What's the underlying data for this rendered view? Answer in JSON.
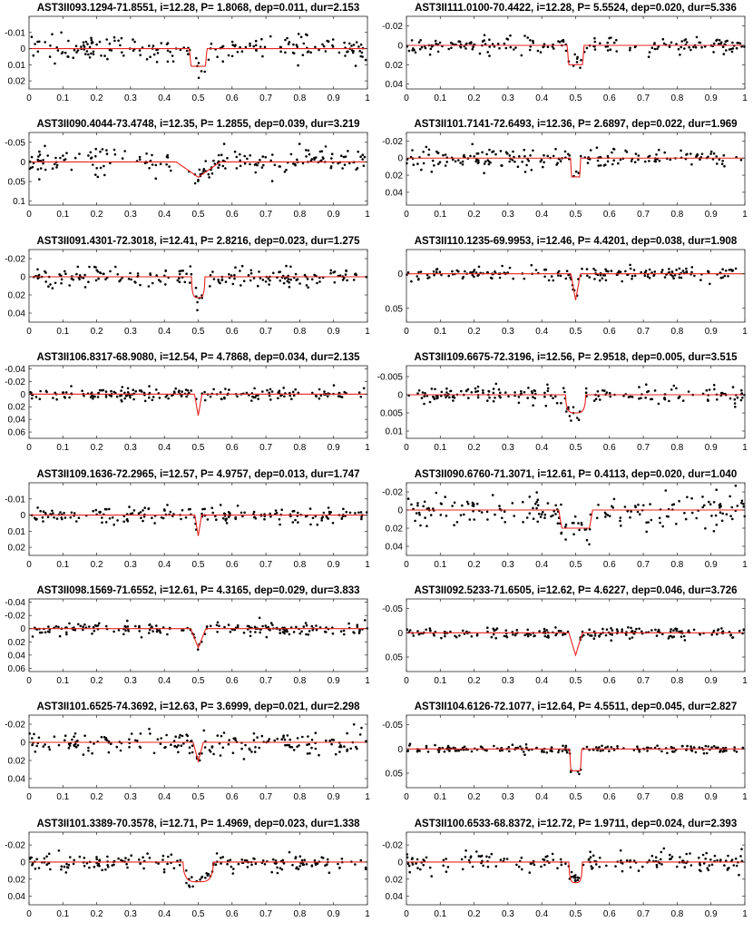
{
  "chart_data": [
    {
      "type": "scatter",
      "title": "AST3II093.1294-71.8551, i=12.28, P= 1.8068, dep=0.011, dur=2.153",
      "xlim": [
        0,
        1
      ],
      "ylim": [
        0.025,
        -0.02
      ],
      "y_inverted": true,
      "xticks": [
        0,
        0.1,
        0.2,
        0.3,
        0.4,
        0.5,
        0.6,
        0.7,
        0.8,
        0.9,
        1
      ],
      "yticks": [
        -0.01,
        0,
        0.01,
        0.02
      ],
      "model_color": "#e8231f",
      "points_color": "#000000",
      "series": [
        {
          "kind": "model",
          "depth": 0.011,
          "center": 0.5,
          "width": 0.052,
          "shape": "box"
        },
        {
          "kind": "points",
          "noise": 0.004,
          "n": 190
        }
      ]
    },
    {
      "type": "scatter",
      "title": "AST3II111.0100-70.4422, i=12.28, P= 5.5524, dep=0.020, dur=5.336",
      "xlim": [
        0,
        1
      ],
      "ylim": [
        0.045,
        -0.03
      ],
      "y_inverted": true,
      "xticks": [
        0,
        0.1,
        0.2,
        0.3,
        0.4,
        0.5,
        0.6,
        0.7,
        0.8,
        0.9,
        1
      ],
      "yticks": [
        -0.02,
        0,
        0.02,
        0.04
      ],
      "model_color": "#e8231f",
      "points_color": "#000000",
      "series": [
        {
          "kind": "model",
          "depth": 0.02,
          "center": 0.5,
          "width": 0.05,
          "shape": "box"
        },
        {
          "kind": "points",
          "noise": 0.004,
          "n": 190
        }
      ]
    },
    {
      "type": "scatter",
      "title": "AST3II090.4044-73.4748, i=12.35, P= 1.2855, dep=0.039, dur=3.219",
      "xlim": [
        0,
        1
      ],
      "ylim": [
        0.11,
        -0.075
      ],
      "y_inverted": true,
      "xticks": [
        0,
        0.1,
        0.2,
        0.3,
        0.4,
        0.5,
        0.6,
        0.7,
        0.8,
        0.9,
        1
      ],
      "yticks": [
        -0.05,
        0,
        0.05,
        0.1
      ],
      "model_color": "#e8231f",
      "points_color": "#000000",
      "series": [
        {
          "kind": "model",
          "depth": 0.039,
          "center": 0.5,
          "width": 0.13,
          "shape": "v"
        },
        {
          "kind": "points",
          "noise": 0.018,
          "n": 190
        }
      ]
    },
    {
      "type": "scatter",
      "title": "AST3II101.7141-72.6493, i=12.36, P= 2.6897, dep=0.022, dur=1.969",
      "xlim": [
        0,
        1
      ],
      "ylim": [
        0.055,
        -0.03
      ],
      "y_inverted": true,
      "xticks": [
        0,
        0.1,
        0.2,
        0.3,
        0.4,
        0.5,
        0.6,
        0.7,
        0.8,
        0.9,
        1
      ],
      "yticks": [
        -0.02,
        0,
        0.02,
        0.04
      ],
      "model_color": "#e8231f",
      "points_color": "#000000",
      "series": [
        {
          "kind": "model",
          "depth": 0.022,
          "center": 0.5,
          "width": 0.03,
          "shape": "box"
        },
        {
          "kind": "points",
          "noise": 0.006,
          "n": 190
        }
      ]
    },
    {
      "type": "scatter",
      "title": "AST3II091.4301-72.3018, i=12.41, P= 2.8216, dep=0.023, dur=1.275",
      "xlim": [
        0,
        1
      ],
      "ylim": [
        0.05,
        -0.03
      ],
      "y_inverted": true,
      "xticks": [
        0,
        0.1,
        0.2,
        0.3,
        0.4,
        0.5,
        0.6,
        0.7,
        0.8,
        0.9,
        1
      ],
      "yticks": [
        -0.02,
        0,
        0.02,
        0.04
      ],
      "model_color": "#e8231f",
      "points_color": "#000000",
      "series": [
        {
          "kind": "model",
          "depth": 0.023,
          "center": 0.5,
          "width": 0.04,
          "shape": "u"
        },
        {
          "kind": "points",
          "noise": 0.005,
          "n": 190
        }
      ]
    },
    {
      "type": "scatter",
      "title": "AST3II110.1235-69.9953, i=12.46, P= 4.4201, dep=0.038, dur=1.908",
      "xlim": [
        0,
        1
      ],
      "ylim": [
        0.07,
        -0.035
      ],
      "y_inverted": true,
      "xticks": [
        0,
        0.1,
        0.2,
        0.3,
        0.4,
        0.5,
        0.6,
        0.7,
        0.8,
        0.9,
        1
      ],
      "yticks": [
        0,
        0.05
      ],
      "model_color": "#e8231f",
      "points_color": "#000000",
      "series": [
        {
          "kind": "model",
          "depth": 0.038,
          "center": 0.5,
          "width": 0.028,
          "shape": "v"
        },
        {
          "kind": "points",
          "noise": 0.005,
          "n": 190
        }
      ]
    },
    {
      "type": "scatter",
      "title": "AST3II106.8317-68.9080, i=12.54, P= 4.7868, dep=0.034, dur=2.135",
      "xlim": [
        0,
        1
      ],
      "ylim": [
        0.07,
        -0.045
      ],
      "y_inverted": true,
      "xticks": [
        0,
        0.1,
        0.2,
        0.3,
        0.4,
        0.5,
        0.6,
        0.7,
        0.8,
        0.9,
        1
      ],
      "yticks": [
        -0.04,
        -0.02,
        0,
        0.02,
        0.04,
        0.06
      ],
      "model_color": "#e8231f",
      "points_color": "#000000",
      "series": [
        {
          "kind": "model",
          "depth": 0.034,
          "center": 0.5,
          "width": 0.022,
          "shape": "v"
        },
        {
          "kind": "points",
          "noise": 0.005,
          "n": 190
        }
      ]
    },
    {
      "type": "scatter",
      "title": "AST3II109.6675-72.3196, i=12.56, P= 2.9518, dep=0.005, dur=3.515",
      "xlim": [
        0,
        1
      ],
      "ylim": [
        0.012,
        -0.008
      ],
      "y_inverted": true,
      "xticks": [
        0,
        0.1,
        0.2,
        0.3,
        0.4,
        0.5,
        0.6,
        0.7,
        0.8,
        0.9,
        1
      ],
      "yticks": [
        -0.005,
        0,
        0.005,
        0.01
      ],
      "model_color": "#e8231f",
      "points_color": "#000000",
      "series": [
        {
          "kind": "model",
          "depth": 0.005,
          "center": 0.5,
          "width": 0.06,
          "shape": "u"
        },
        {
          "kind": "points",
          "noise": 0.0012,
          "n": 190
        }
      ]
    },
    {
      "type": "scatter",
      "title": "AST3II109.1636-72.2965, i=12.57, P= 4.9757, dep=0.013, dur=1.747",
      "xlim": [
        0,
        1
      ],
      "ylim": [
        0.025,
        -0.02
      ],
      "y_inverted": true,
      "xticks": [
        0,
        0.1,
        0.2,
        0.3,
        0.4,
        0.5,
        0.6,
        0.7,
        0.8,
        0.9,
        1
      ],
      "yticks": [
        -0.01,
        0,
        0.01,
        0.02
      ],
      "model_color": "#e8231f",
      "points_color": "#000000",
      "series": [
        {
          "kind": "model",
          "depth": 0.013,
          "center": 0.5,
          "width": 0.02,
          "shape": "v"
        },
        {
          "kind": "points",
          "noise": 0.0025,
          "n": 190
        }
      ]
    },
    {
      "type": "scatter",
      "title": "AST3II090.6760-71.3071, i=12.61, P= 0.4113, dep=0.020, dur=1.040",
      "xlim": [
        0,
        1
      ],
      "ylim": [
        0.05,
        -0.03
      ],
      "y_inverted": true,
      "xticks": [
        0,
        0.1,
        0.2,
        0.3,
        0.4,
        0.5,
        0.6,
        0.7,
        0.8,
        0.9,
        1
      ],
      "yticks": [
        -0.02,
        0,
        0.02,
        0.04
      ],
      "model_color": "#e8231f",
      "points_color": "#000000",
      "series": [
        {
          "kind": "model",
          "depth": 0.02,
          "center": 0.5,
          "width": 0.1,
          "shape": "box"
        },
        {
          "kind": "points",
          "noise": 0.009,
          "n": 190
        }
      ]
    },
    {
      "type": "scatter",
      "title": "AST3II098.1569-71.6552, i=12.61, P= 4.3165, dep=0.029, dur=3.833",
      "xlim": [
        0,
        1
      ],
      "ylim": [
        0.065,
        -0.045
      ],
      "y_inverted": true,
      "xticks": [
        0,
        0.1,
        0.2,
        0.3,
        0.4,
        0.5,
        0.6,
        0.7,
        0.8,
        0.9,
        1
      ],
      "yticks": [
        -0.04,
        -0.02,
        0,
        0.02,
        0.04,
        0.06
      ],
      "model_color": "#e8231f",
      "points_color": "#000000",
      "series": [
        {
          "kind": "model",
          "depth": 0.029,
          "center": 0.5,
          "width": 0.045,
          "shape": "v"
        },
        {
          "kind": "points",
          "noise": 0.005,
          "n": 190
        }
      ]
    },
    {
      "type": "scatter",
      "title": "AST3II092.5233-71.6505, i=12.62, P= 4.6227, dep=0.046, dur=3.726",
      "xlim": [
        0,
        1
      ],
      "ylim": [
        0.08,
        -0.07
      ],
      "y_inverted": true,
      "xticks": [
        0,
        0.1,
        0.2,
        0.3,
        0.4,
        0.5,
        0.6,
        0.7,
        0.8,
        0.9,
        1
      ],
      "yticks": [
        -0.05,
        0,
        0.05
      ],
      "model_color": "#e8231f",
      "points_color": "#000000",
      "series": [
        {
          "kind": "model",
          "depth": 0.046,
          "center": 0.5,
          "width": 0.04,
          "shape": "v"
        },
        {
          "kind": "points",
          "noise": 0.006,
          "n": 190
        }
      ]
    },
    {
      "type": "scatter",
      "title": "AST3II101.6525-74.3692, i=12.63, P= 3.6999, dep=0.021, dur=2.298",
      "xlim": [
        0,
        1
      ],
      "ylim": [
        0.05,
        -0.03
      ],
      "y_inverted": true,
      "xticks": [
        0,
        0.1,
        0.2,
        0.3,
        0.4,
        0.5,
        0.6,
        0.7,
        0.8,
        0.9,
        1
      ],
      "yticks": [
        -0.02,
        0,
        0.02,
        0.04
      ],
      "model_color": "#e8231f",
      "points_color": "#000000",
      "series": [
        {
          "kind": "model",
          "depth": 0.021,
          "center": 0.5,
          "width": 0.03,
          "shape": "v"
        },
        {
          "kind": "points",
          "noise": 0.006,
          "n": 190
        }
      ]
    },
    {
      "type": "scatter",
      "title": "AST3II104.6126-72.1077, i=12.64, P= 4.5511, dep=0.045, dur=2.827",
      "xlim": [
        0,
        1
      ],
      "ylim": [
        0.08,
        -0.07
      ],
      "y_inverted": true,
      "xticks": [
        0,
        0.1,
        0.2,
        0.3,
        0.4,
        0.5,
        0.6,
        0.7,
        0.8,
        0.9,
        1
      ],
      "yticks": [
        -0.05,
        0,
        0.05
      ],
      "model_color": "#e8231f",
      "points_color": "#000000",
      "series": [
        {
          "kind": "model",
          "depth": 0.045,
          "center": 0.5,
          "width": 0.035,
          "shape": "box"
        },
        {
          "kind": "points",
          "noise": 0.004,
          "n": 190
        }
      ]
    },
    {
      "type": "scatter",
      "title": "AST3II101.3389-70.3578, i=12.71, P= 1.4969, dep=0.023, dur=1.338",
      "xlim": [
        0,
        1
      ],
      "ylim": [
        0.05,
        -0.035
      ],
      "y_inverted": true,
      "xticks": [
        0,
        0.1,
        0.2,
        0.3,
        0.4,
        0.5,
        0.6,
        0.7,
        0.8,
        0.9,
        1
      ],
      "yticks": [
        -0.02,
        0,
        0.02,
        0.04
      ],
      "model_color": "#e8231f",
      "points_color": "#000000",
      "series": [
        {
          "kind": "model",
          "depth": 0.023,
          "center": 0.5,
          "width": 0.09,
          "shape": "u"
        },
        {
          "kind": "points",
          "noise": 0.005,
          "n": 190
        }
      ]
    },
    {
      "type": "scatter",
      "title": "AST3II100.6533-68.8372, i=12.72, P= 1.9711, dep=0.024, dur=2.393",
      "xlim": [
        0,
        1
      ],
      "ylim": [
        0.05,
        -0.035
      ],
      "y_inverted": true,
      "xticks": [
        0,
        0.1,
        0.2,
        0.3,
        0.4,
        0.5,
        0.6,
        0.7,
        0.8,
        0.9,
        1
      ],
      "yticks": [
        -0.02,
        0,
        0.02,
        0.04
      ],
      "model_color": "#e8231f",
      "points_color": "#000000",
      "series": [
        {
          "kind": "model",
          "depth": 0.024,
          "center": 0.5,
          "width": 0.04,
          "shape": "u"
        },
        {
          "kind": "points",
          "noise": 0.006,
          "n": 190
        }
      ]
    }
  ]
}
